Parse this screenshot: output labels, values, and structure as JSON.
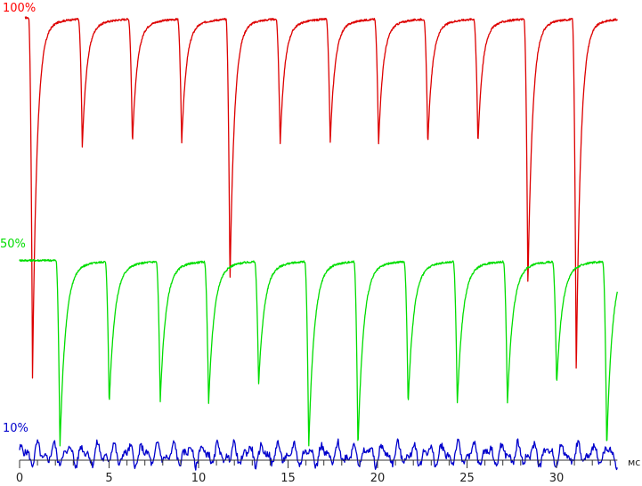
{
  "chart_data": {
    "type": "line",
    "title": "",
    "xlabel": "мс",
    "ylabel": "",
    "xlim": [
      0,
      33.4
    ],
    "ylim": [
      0,
      100
    ],
    "grid": false,
    "x_ticks": [
      0,
      5,
      10,
      15,
      20,
      25,
      30
    ],
    "x_tick_labels": [
      "0",
      "5",
      "10",
      "15",
      "20",
      "25",
      "30"
    ],
    "minor_tick_step": 1,
    "level_labels": [
      {
        "text": "100%",
        "color": "#ff0000"
      },
      {
        "text": "50%",
        "color": "#00dd00"
      },
      {
        "text": "10%",
        "color": "#0000cc"
      }
    ],
    "series": [
      {
        "color": "#dd0000",
        "baseline_value": 100,
        "recovery_tau_ms": 0.25,
        "start_ms": 0.3,
        "end_ms": 33.4,
        "dips": [
          {
            "t": 0.72,
            "v": 28.0
          },
          {
            "t": 3.5,
            "v": 75.6
          },
          {
            "t": 6.3,
            "v": 75.7
          },
          {
            "t": 9.05,
            "v": 75.6
          },
          {
            "t": 11.75,
            "v": 47.0
          },
          {
            "t": 14.55,
            "v": 75.6
          },
          {
            "t": 17.35,
            "v": 75.7
          },
          {
            "t": 20.05,
            "v": 75.6
          },
          {
            "t": 22.8,
            "v": 75.6
          },
          {
            "t": 25.6,
            "v": 75.5
          },
          {
            "t": 28.4,
            "v": 46.0
          },
          {
            "t": 31.1,
            "v": 28.0
          }
        ]
      },
      {
        "color": "#00dd00",
        "baseline_value": 50,
        "recovery_tau_ms": 0.3,
        "start_ms": 0.0,
        "end_ms": 33.4,
        "dips": [
          {
            "t": 2.25,
            "v": 13.0
          },
          {
            "t": 5.0,
            "v": 22.0
          },
          {
            "t": 7.85,
            "v": 22.5
          },
          {
            "t": 10.55,
            "v": 22.0
          },
          {
            "t": 13.35,
            "v": 26.0
          },
          {
            "t": 16.15,
            "v": 13.0
          },
          {
            "t": 18.9,
            "v": 13.0
          },
          {
            "t": 21.7,
            "v": 22.0
          },
          {
            "t": 24.45,
            "v": 22.0
          },
          {
            "t": 27.25,
            "v": 22.0
          },
          {
            "t": 30.0,
            "v": 26.0
          },
          {
            "t": 32.8,
            "v": 13.0
          }
        ]
      },
      {
        "color": "#0000cc",
        "baseline_value": 10,
        "noise_amplitude": 3,
        "start_ms": 0.0,
        "end_ms": 33.4
      }
    ]
  }
}
